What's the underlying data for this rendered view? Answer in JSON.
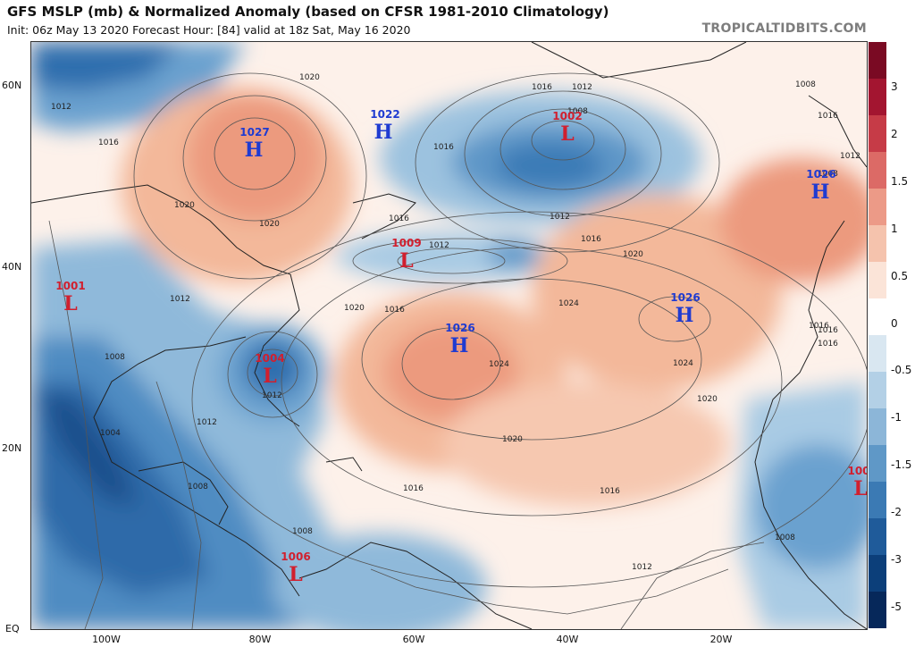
{
  "header": {
    "title": "GFS MSLP (mb) & Normalized Anomaly (based on CFSR 1981-2010 Climatology)",
    "subtitle": "Init: 06z May 13 2020   Forecast Hour: [84]   valid at 18z Sat, May 16 2020",
    "brand": "TROPICALTIDBITS.COM"
  },
  "axes": {
    "lat_labels": [
      "60N",
      "40N",
      "20N",
      "EQ"
    ],
    "lon_labels": [
      "100W",
      "80W",
      "60W",
      "40W",
      "20W"
    ]
  },
  "colorbar": {
    "labels": [
      "3",
      "2",
      "1.5",
      "1",
      "0.5",
      "0",
      "-0.5",
      "-1",
      "-1.5",
      "-2",
      "-3",
      "-5"
    ],
    "colors": [
      "#7a0a23",
      "#a31530",
      "#c63b47",
      "#dc6a66",
      "#ec9a87",
      "#f5c3ad",
      "#fbe4d8",
      "#ffffff",
      "#d9e7f1",
      "#b3d0e6",
      "#8cb6d8",
      "#5f98c7",
      "#3b7ab4",
      "#1f5b9a",
      "#0c3f7a",
      "#06285a"
    ]
  },
  "systems": [
    {
      "type": "H",
      "value": "1027"
    },
    {
      "type": "H",
      "value": "1022"
    },
    {
      "type": "L",
      "value": "1002"
    },
    {
      "type": "H",
      "value": "1026"
    },
    {
      "type": "L",
      "value": "1009"
    },
    {
      "type": "L",
      "value": "1001"
    },
    {
      "type": "H",
      "value": "1026"
    },
    {
      "type": "H",
      "value": "1026"
    },
    {
      "type": "L",
      "value": "1004"
    },
    {
      "type": "L",
      "value": "1006"
    },
    {
      "type": "L",
      "value": "100"
    }
  ],
  "isobar_labels": [
    "1012",
    "1016",
    "1020",
    "1016",
    "1012",
    "1008",
    "1020",
    "1016",
    "1012",
    "1008",
    "1016",
    "1012",
    "1008",
    "1020",
    "1016",
    "1016",
    "1012",
    "1020",
    "1024",
    "1024",
    "1020",
    "1020",
    "1016",
    "1016",
    "1012",
    "1012",
    "1008",
    "1008",
    "1012",
    "1016",
    "1020",
    "1016",
    "1016",
    "1024",
    "1008",
    "1004",
    "1008",
    "1012",
    "1016"
  ]
}
